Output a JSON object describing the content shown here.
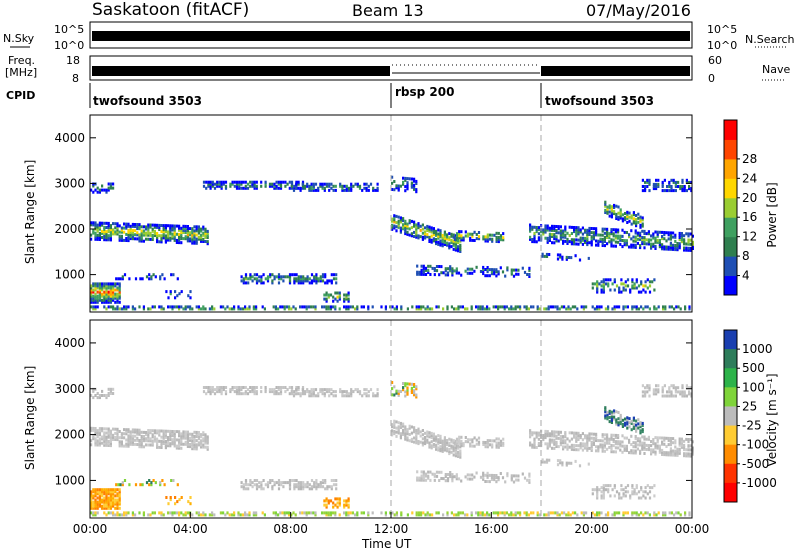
{
  "header": {
    "station": "Saskatoon (fitACF)",
    "beam": "Beam 13",
    "date": "07/May/2016"
  },
  "noise_panel": {
    "left_label": "N.Sky",
    "right_label": "N.Search",
    "y_ticks_left": [
      "10^5",
      "10^0"
    ],
    "y_ticks_right": [
      "10^5",
      "10^0"
    ]
  },
  "freq_panel": {
    "left_label_1": "Freq.",
    "left_label_2": "[MHz]",
    "right_label": "Nave",
    "y_ticks_left": [
      "18",
      "8"
    ],
    "y_ticks_right": [
      "60",
      "0"
    ]
  },
  "cpid_panel": {
    "label": "CPID",
    "segments": [
      {
        "name": "twofsound 3503",
        "start_hour": 0
      },
      {
        "name": "rbsp 200",
        "start_hour": 12
      },
      {
        "name": "twofsound 3503",
        "start_hour": 18
      }
    ]
  },
  "chart_data": [
    {
      "type": "heatmap",
      "title": "Power",
      "ylabel": "Slant Range [km]",
      "xlabel": "",
      "ylim": [
        180,
        4500
      ],
      "xlim": [
        0,
        24
      ],
      "y_ticks": [
        "1000",
        "2000",
        "3000",
        "4000"
      ],
      "colorbar_label": "Power [dB]",
      "colorbar_ticks": [
        "4",
        "8",
        "12",
        "16",
        "20",
        "24",
        "28"
      ],
      "colorbar_colors": [
        "#0000ff",
        "#1f4fb4",
        "#2f7f4f",
        "#3fa060",
        "#9acd32",
        "#ffd700",
        "#ffa500",
        "#ff4500",
        "#ff0000"
      ]
    },
    {
      "type": "heatmap",
      "title": "Velocity",
      "ylabel": "Slant Range [km]",
      "xlabel": "Time UT",
      "ylim": [
        180,
        4500
      ],
      "xlim": [
        0,
        24
      ],
      "y_ticks": [
        "1000",
        "2000",
        "3000",
        "4000"
      ],
      "x_ticks": [
        "00:00",
        "04:00",
        "08:00",
        "12:00",
        "16:00",
        "20:00",
        "00:00"
      ],
      "colorbar_label": "Velocity [m s⁻¹]",
      "colorbar_ticks": [
        "1000",
        "500",
        "100",
        "25",
        "-25",
        "-100",
        "-500",
        "-1000"
      ],
      "colorbar_colors": [
        "#1a3fb0",
        "#2e7d5b",
        "#2db34a",
        "#7fd43a",
        "#bcbcbc",
        "#ffcc33",
        "#ff8c00",
        "#ff3300",
        "#ff0000"
      ]
    }
  ],
  "colors": {
    "grid_dash": "#aaaaaa",
    "ground_scatter": "#bdbdbd"
  }
}
